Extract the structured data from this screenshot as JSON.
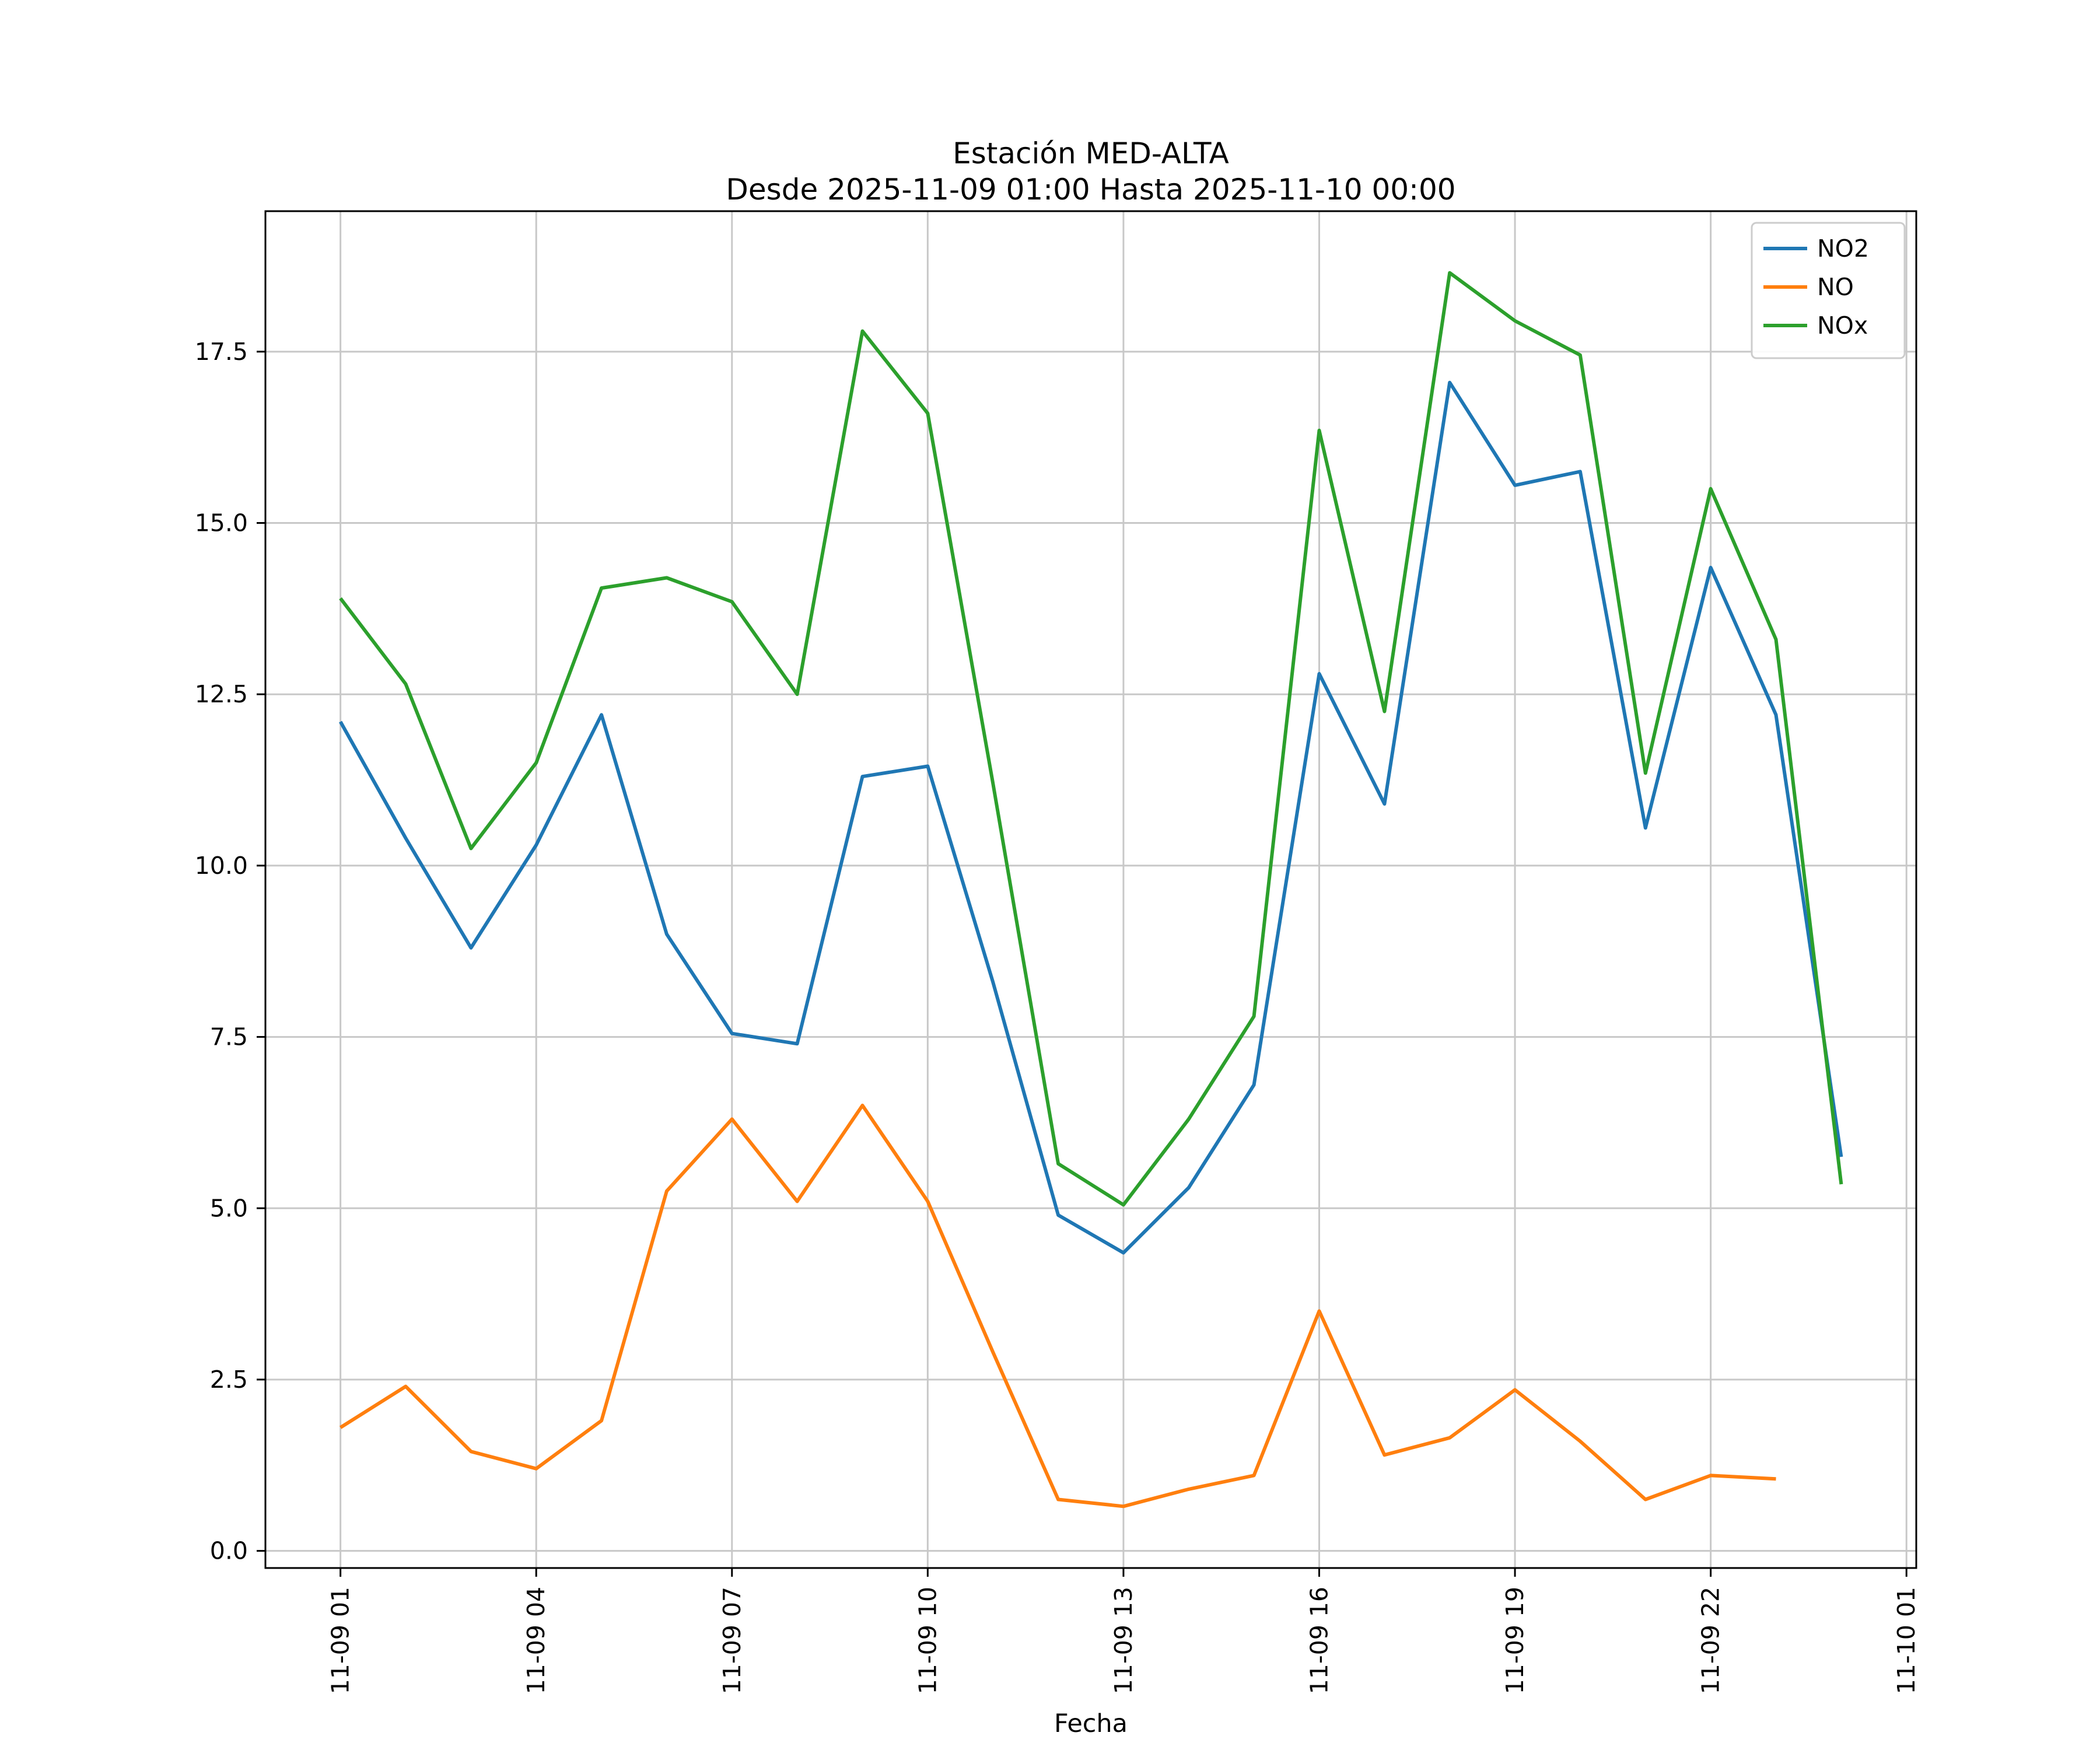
{
  "chart_data": {
    "type": "line",
    "title": "Estación MED-ALTA",
    "subtitle": "Desde 2025-11-09 01:00 Hasta 2025-11-10 00:00",
    "xlabel": "Fecha",
    "ylabel": "",
    "grid": true,
    "legend_position": "upper right",
    "xlim": [
      -0.15,
      25.15
    ],
    "ylim": [
      -0.25,
      19.55
    ],
    "x": [
      1,
      2,
      3,
      4,
      5,
      6,
      7,
      8,
      9,
      10,
      11,
      12,
      13,
      14,
      15,
      16,
      17,
      18,
      19,
      20,
      21,
      22,
      23,
      24
    ],
    "xtick_positions": [
      1,
      4,
      7,
      10,
      13,
      16,
      19,
      22,
      25
    ],
    "xtick_labels": [
      "11-09 01",
      "11-09 04",
      "11-09 07",
      "11-09 10",
      "11-09 13",
      "11-09 16",
      "11-09 19",
      "11-09 22",
      "11-10 01"
    ],
    "ytick_values": [
      0.0,
      2.5,
      5.0,
      7.5,
      10.0,
      12.5,
      15.0,
      17.5
    ],
    "ytick_labels": [
      "0.0",
      "2.5",
      "5.0",
      "7.5",
      "10.0",
      "12.5",
      "15.0",
      "17.5"
    ],
    "colors": {
      "grid": "#c8c8c8",
      "axis": "#000000",
      "legend_border": "#cccccc"
    },
    "series": [
      {
        "name": "NO2",
        "color": "#1f77b4",
        "values": [
          12.1,
          10.4,
          8.8,
          10.3,
          12.2,
          9.0,
          7.55,
          7.4,
          11.3,
          11.45,
          8.3,
          4.9,
          4.35,
          5.3,
          6.8,
          12.8,
          10.9,
          17.05,
          15.55,
          15.75,
          10.55,
          14.35,
          12.2,
          5.75
        ]
      },
      {
        "name": "NO",
        "color": "#ff7f0e",
        "values": [
          1.8,
          2.4,
          1.45,
          1.2,
          1.9,
          5.25,
          6.3,
          5.1,
          6.5,
          5.1,
          2.9,
          0.75,
          0.65,
          0.9,
          1.1,
          3.5,
          1.4,
          1.65,
          2.35,
          1.6,
          0.75,
          1.1,
          1.05,
          null
        ]
      },
      {
        "name": "NOx",
        "color": "#2ca02c",
        "values": [
          13.9,
          12.65,
          10.25,
          11.5,
          14.05,
          14.2,
          13.85,
          12.5,
          17.8,
          16.6,
          11.2,
          5.65,
          5.05,
          6.3,
          7.8,
          16.35,
          12.25,
          18.65,
          17.95,
          17.45,
          11.35,
          15.5,
          13.3,
          5.35
        ]
      }
    ]
  }
}
